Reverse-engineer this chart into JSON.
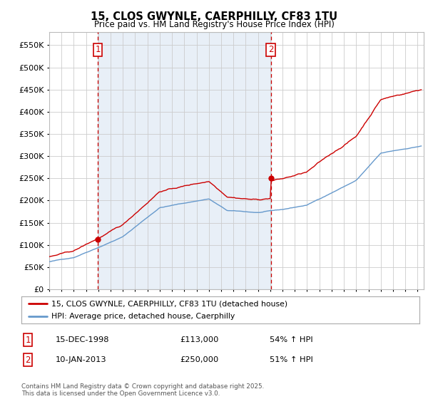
{
  "title": "15, CLOS GWYNLE, CAERPHILLY, CF83 1TU",
  "subtitle": "Price paid vs. HM Land Registry's House Price Index (HPI)",
  "red_legend": "15, CLOS GWYNLE, CAERPHILLY, CF83 1TU (detached house)",
  "blue_legend": "HPI: Average price, detached house, Caerphilly",
  "annotation1_label": "1",
  "annotation1_date": "15-DEC-1998",
  "annotation1_price": "£113,000",
  "annotation1_hpi": "54% ↑ HPI",
  "annotation2_label": "2",
  "annotation2_date": "10-JAN-2013",
  "annotation2_price": "£250,000",
  "annotation2_hpi": "51% ↑ HPI",
  "footer": "Contains HM Land Registry data © Crown copyright and database right 2025.\nThis data is licensed under the Open Government Licence v3.0.",
  "ylim": [
    0,
    580000
  ],
  "yticks": [
    0,
    50000,
    100000,
    150000,
    200000,
    250000,
    300000,
    350000,
    400000,
    450000,
    500000,
    550000
  ],
  "xmin": 1995.0,
  "xmax": 2025.5,
  "marker1_x": 1998.96,
  "marker1_y": 113000,
  "marker2_x": 2013.04,
  "marker2_y": 250000,
  "vline1_x": 1998.96,
  "vline2_x": 2013.04,
  "red_color": "#cc0000",
  "blue_color": "#6699cc",
  "blue_fill": "#dce9f5",
  "vline_color": "#cc0000",
  "grid_color": "#cccccc",
  "background_color": "#ffffff"
}
